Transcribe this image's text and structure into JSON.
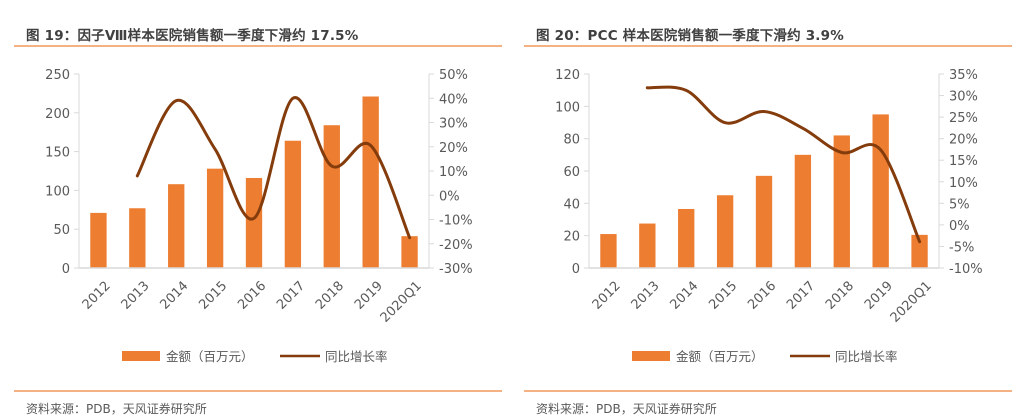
{
  "chart_data": [
    {
      "type": "bar",
      "title": "图 19：因子Ⅷ样本医院销售额一季度下滑约 17.5%",
      "categories": [
        "2012",
        "2013",
        "2014",
        "2015",
        "2016",
        "2017",
        "2018",
        "2019",
        "2020Q1"
      ],
      "series": [
        {
          "name": "金额（百万元）",
          "type": "bar",
          "axis": "left",
          "color": "#ED7D31",
          "values": [
            71,
            77,
            108,
            128,
            116,
            164,
            184,
            221,
            41
          ]
        },
        {
          "name": "同比增长率",
          "type": "line",
          "axis": "right",
          "color": "#843C0C",
          "smooth": true,
          "values": [
            null,
            8,
            39,
            19,
            -9.5,
            40,
            12,
            20.5,
            -17.5
          ]
        }
      ],
      "left_axis": {
        "min": 0,
        "max": 250,
        "step": 50,
        "ticks": [
          "0",
          "50",
          "100",
          "150",
          "200",
          "250"
        ]
      },
      "right_axis": {
        "min": -30,
        "max": 50,
        "step": 10,
        "ticks": [
          "-30%",
          "-20%",
          "-10%",
          "0%",
          "10%",
          "20%",
          "30%",
          "40%",
          "50%"
        ]
      },
      "xlabel": "",
      "ylabel": "",
      "grid": false,
      "legend_position": "bottom",
      "source": "资料来源：PDB，天风证券研究所"
    },
    {
      "type": "bar",
      "title": "图 20：PCC 样本医院销售额一季度下滑约 3.9%",
      "categories": [
        "2012",
        "2013",
        "2014",
        "2015",
        "2016",
        "2017",
        "2018",
        "2019",
        "2020Q1"
      ],
      "series": [
        {
          "name": "金额（百万元）",
          "type": "bar",
          "axis": "left",
          "color": "#ED7D31",
          "values": [
            21,
            27.5,
            36.5,
            45,
            57,
            70,
            82,
            95,
            20.5
          ]
        },
        {
          "name": "同比增长率",
          "type": "line",
          "axis": "right",
          "color": "#843C0C",
          "smooth": true,
          "values": [
            null,
            31.8,
            31.2,
            23.7,
            26.3,
            22.4,
            16.8,
            17.4,
            -3.9
          ]
        }
      ],
      "left_axis": {
        "min": 0,
        "max": 120,
        "step": 20,
        "ticks": [
          "0",
          "20",
          "40",
          "60",
          "80",
          "100",
          "120"
        ]
      },
      "right_axis": {
        "min": -10,
        "max": 35,
        "step": 5,
        "ticks": [
          "-10%",
          "-5%",
          "0%",
          "5%",
          "10%",
          "15%",
          "20%",
          "25%",
          "30%",
          "35%"
        ]
      },
      "xlabel": "",
      "ylabel": "",
      "grid": false,
      "legend_position": "bottom",
      "source": "资料来源：PDB，天风证券研究所"
    }
  ],
  "colors": {
    "bar": "#ED7D31",
    "line": "#843C0C",
    "rule": "#F4B183",
    "axis": "#D9D9D9",
    "text": "#595959"
  }
}
